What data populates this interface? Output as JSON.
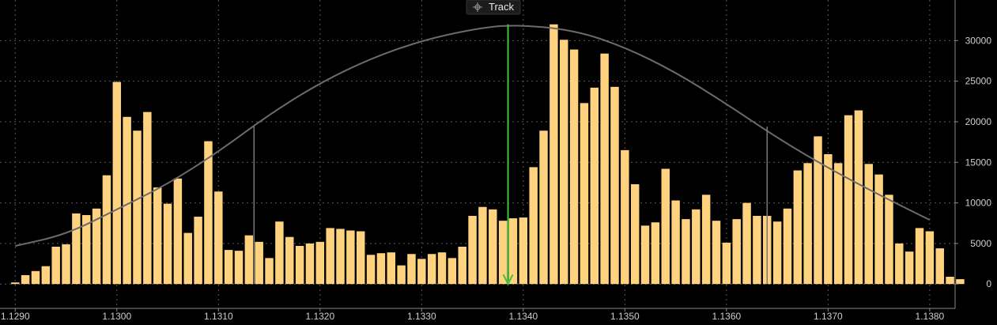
{
  "toolbar": {
    "track_label": "Track",
    "track_icon": "crosshair-icon"
  },
  "colors": {
    "bars": "#ffd27f",
    "curve": "#6b6b6b",
    "marker": "#3ec43e",
    "background": "#000000",
    "grid": "#5a5a5a"
  },
  "chart_data": {
    "type": "bar",
    "title": "",
    "xlabel": "",
    "ylabel": "",
    "x_range": [
      1.12885,
      1.13825
    ],
    "ylim": [
      -3000,
      35000
    ],
    "x_ticks": [
      "1.1290",
      "1.1300",
      "1.1310",
      "1.1320",
      "1.1330",
      "1.1340",
      "1.1350",
      "1.1360",
      "1.1370",
      "1.1380"
    ],
    "y_ticks": [
      "0",
      "5000",
      "10000",
      "15000",
      "20000",
      "25000",
      "30000"
    ],
    "grid": true,
    "y_axis_side": "right",
    "bin_start": 1.129,
    "bin_width": 0.0001,
    "values": [
      200,
      1100,
      1600,
      2200,
      4600,
      4900,
      8700,
      8500,
      9300,
      13400,
      24900,
      20600,
      18900,
      21200,
      11900,
      9900,
      13000,
      6300,
      8300,
      17600,
      11400,
      4200,
      4100,
      6000,
      5200,
      3200,
      7700,
      5800,
      4700,
      5000,
      5200,
      6900,
      6800,
      6600,
      6500,
      3600,
      3800,
      3900,
      2300,
      3700,
      3100,
      3700,
      3900,
      3200,
      4600,
      8400,
      9500,
      9200,
      7800,
      8100,
      8200,
      14400,
      18900,
      32000,
      30100,
      28900,
      22300,
      24200,
      28400,
      24300,
      16500,
      12300,
      7200,
      7600,
      14200,
      10300,
      8000,
      9200,
      11000,
      7800,
      5100,
      8000,
      10000,
      8400,
      8400,
      7700,
      9300,
      14000,
      14900,
      18200,
      16000,
      14900,
      20800,
      21400,
      14800,
      13500,
      11000,
      5000,
      4000,
      6900,
      6500,
      4400,
      900,
      600
    ],
    "curve": [
      {
        "x": 1.129,
        "y": 4700
      },
      {
        "x": 1.1295,
        "y": 6100
      },
      {
        "x": 1.13,
        "y": 9200
      },
      {
        "x": 1.1305,
        "y": 12300
      },
      {
        "x": 1.131,
        "y": 16300
      },
      {
        "x": 1.1315,
        "y": 20900
      },
      {
        "x": 1.132,
        "y": 24800
      },
      {
        "x": 1.1325,
        "y": 27800
      },
      {
        "x": 1.133,
        "y": 30000
      },
      {
        "x": 1.1335,
        "y": 31400
      },
      {
        "x": 1.1339,
        "y": 32000
      },
      {
        "x": 1.1345,
        "y": 31300
      },
      {
        "x": 1.135,
        "y": 29200
      },
      {
        "x": 1.1355,
        "y": 26100
      },
      {
        "x": 1.136,
        "y": 22200
      },
      {
        "x": 1.1365,
        "y": 18000
      },
      {
        "x": 1.137,
        "y": 14300
      },
      {
        "x": 1.1375,
        "y": 11000
      },
      {
        "x": 1.138,
        "y": 7900
      }
    ],
    "std_dev_lines": [
      {
        "x": 1.13135,
        "y": 19400
      },
      {
        "x": 1.1364,
        "y": 19400
      }
    ],
    "marker": {
      "x": 1.13385,
      "y_top": 32000,
      "y_bottom": 0
    }
  }
}
